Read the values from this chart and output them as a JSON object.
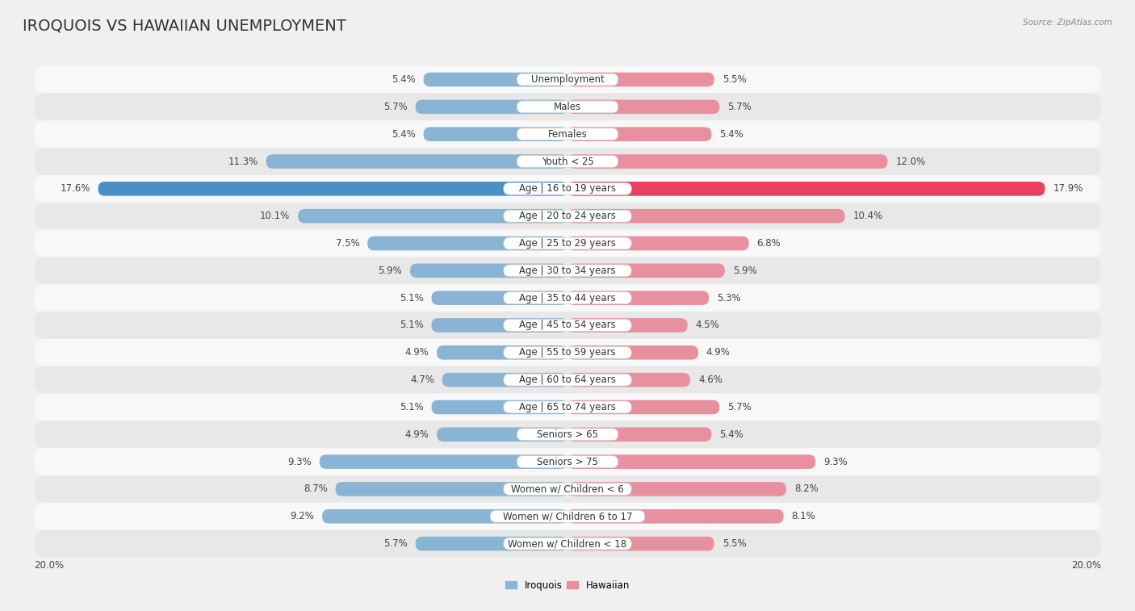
{
  "title": "IROQUOIS VS HAWAIIAN UNEMPLOYMENT",
  "source": "Source: ZipAtlas.com",
  "categories": [
    "Unemployment",
    "Males",
    "Females",
    "Youth < 25",
    "Age | 16 to 19 years",
    "Age | 20 to 24 years",
    "Age | 25 to 29 years",
    "Age | 30 to 34 years",
    "Age | 35 to 44 years",
    "Age | 45 to 54 years",
    "Age | 55 to 59 years",
    "Age | 60 to 64 years",
    "Age | 65 to 74 years",
    "Seniors > 65",
    "Seniors > 75",
    "Women w/ Children < 6",
    "Women w/ Children 6 to 17",
    "Women w/ Children < 18"
  ],
  "iroquois": [
    5.4,
    5.7,
    5.4,
    11.3,
    17.6,
    10.1,
    7.5,
    5.9,
    5.1,
    5.1,
    4.9,
    4.7,
    5.1,
    4.9,
    9.3,
    8.7,
    9.2,
    5.7
  ],
  "hawaiian": [
    5.5,
    5.7,
    5.4,
    12.0,
    17.9,
    10.4,
    6.8,
    5.9,
    5.3,
    4.5,
    4.9,
    4.6,
    5.7,
    5.4,
    9.3,
    8.2,
    8.1,
    5.5
  ],
  "iroquois_color": "#8ab4d4",
  "hawaiian_color": "#e8909e",
  "iroquois_highlight_color": "#4a90c4",
  "hawaiian_highlight_color": "#e8405e",
  "bar_height": 0.52,
  "xlim_max": 20.0,
  "background_color": "#f0f0f0",
  "row_color_odd": "#f8f8f8",
  "row_color_even": "#e8e8e8",
  "title_fontsize": 14,
  "label_fontsize": 8.5,
  "value_fontsize": 8.5,
  "axis_label_fontsize": 8.5
}
